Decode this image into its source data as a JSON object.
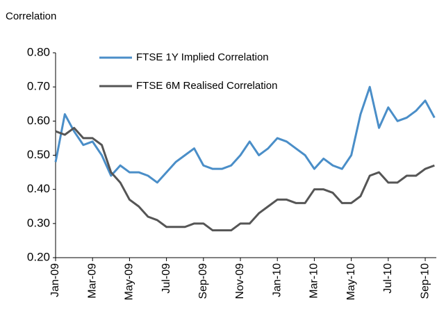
{
  "chart_data": {
    "type": "line",
    "ylabel": "Correlation",
    "x": [
      0,
      0.5,
      1,
      1.5,
      2,
      2.5,
      3,
      3.5,
      4,
      4.5,
      5,
      5.5,
      6,
      6.5,
      7,
      7.5,
      8,
      8.5,
      9,
      9.5,
      10,
      10.5,
      11,
      11.5,
      12,
      12.5,
      13,
      13.5,
      14,
      14.5,
      15,
      15.5,
      16,
      16.5,
      17,
      17.5,
      18,
      18.5,
      19,
      19.5,
      20,
      20.5
    ],
    "xlim": [
      0,
      20.6
    ],
    "xticks": [
      {
        "value": 0,
        "label": "Jan-09"
      },
      {
        "value": 2,
        "label": "Mar-09"
      },
      {
        "value": 4,
        "label": "May-09"
      },
      {
        "value": 6,
        "label": "Jul-09"
      },
      {
        "value": 8,
        "label": "Sep-09"
      },
      {
        "value": 10,
        "label": "Nov-09"
      },
      {
        "value": 12,
        "label": "Jan-10"
      },
      {
        "value": 14,
        "label": "Mar-10"
      },
      {
        "value": 16,
        "label": "May-10"
      },
      {
        "value": 18,
        "label": "Jul-10"
      },
      {
        "value": 20,
        "label": "Sep-10"
      }
    ],
    "ylim": [
      0.2,
      0.8
    ],
    "yticks": [
      {
        "value": 0.2,
        "label": "0.20"
      },
      {
        "value": 0.3,
        "label": "0.30"
      },
      {
        "value": 0.4,
        "label": "0.40"
      },
      {
        "value": 0.5,
        "label": "0.50"
      },
      {
        "value": 0.6,
        "label": "0.60"
      },
      {
        "value": 0.7,
        "label": "0.70"
      },
      {
        "value": 0.8,
        "label": "0.80"
      }
    ],
    "grid": false,
    "series": [
      {
        "name": "FTSE 1Y Implied Correlation",
        "color": "#4a8ec8",
        "values": [
          0.48,
          0.62,
          0.57,
          0.53,
          0.54,
          0.5,
          0.44,
          0.47,
          0.45,
          0.45,
          0.44,
          0.42,
          0.45,
          0.48,
          0.5,
          0.52,
          0.47,
          0.46,
          0.46,
          0.47,
          0.5,
          0.54,
          0.5,
          0.52,
          0.55,
          0.54,
          0.52,
          0.5,
          0.46,
          0.49,
          0.47,
          0.46,
          0.5,
          0.62,
          0.7,
          0.58,
          0.64,
          0.6,
          0.61,
          0.63,
          0.66,
          0.61
        ]
      },
      {
        "name": "FTSE 6M Realised Correlation",
        "color": "#555555",
        "values": [
          0.57,
          0.56,
          0.58,
          0.55,
          0.55,
          0.53,
          0.45,
          0.42,
          0.37,
          0.35,
          0.32,
          0.31,
          0.29,
          0.29,
          0.29,
          0.3,
          0.3,
          0.28,
          0.28,
          0.28,
          0.3,
          0.3,
          0.33,
          0.35,
          0.37,
          0.37,
          0.36,
          0.36,
          0.4,
          0.4,
          0.39,
          0.36,
          0.36,
          0.38,
          0.44,
          0.45,
          0.42,
          0.42,
          0.44,
          0.44,
          0.46,
          0.47
        ]
      }
    ]
  }
}
